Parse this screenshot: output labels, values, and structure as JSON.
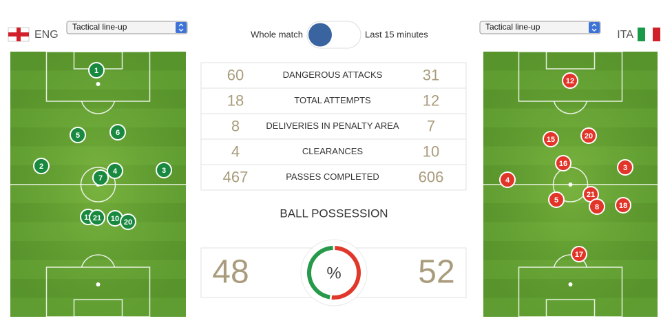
{
  "home": {
    "team": "ENG",
    "select": "Tactical line-up",
    "players": [
      1,
      5,
      6,
      2,
      4,
      7,
      3,
      11,
      21,
      10,
      20
    ]
  },
  "away": {
    "team": "ITA",
    "select": "Tactical line-up",
    "players": [
      12,
      15,
      20,
      16,
      3,
      4,
      21,
      5,
      8,
      18,
      17
    ]
  },
  "toggle": {
    "left": "Whole match",
    "right": "Last 15 minutes"
  },
  "stats": [
    {
      "home": 60,
      "label": "DANGEROUS ATTACKS",
      "away": 31
    },
    {
      "home": 18,
      "label": "TOTAL ATTEMPTS",
      "away": 12
    },
    {
      "home": 8,
      "label": "DELIVERIES IN PENALTY AREA",
      "away": 7
    },
    {
      "home": 4,
      "label": "CLEARANCES",
      "away": 10
    },
    {
      "home": 467,
      "label": "PASSES COMPLETED",
      "away": 606
    }
  ],
  "possession": {
    "title": "BALL POSSESSION",
    "home": 48,
    "away": 52,
    "symbol": "%"
  }
}
